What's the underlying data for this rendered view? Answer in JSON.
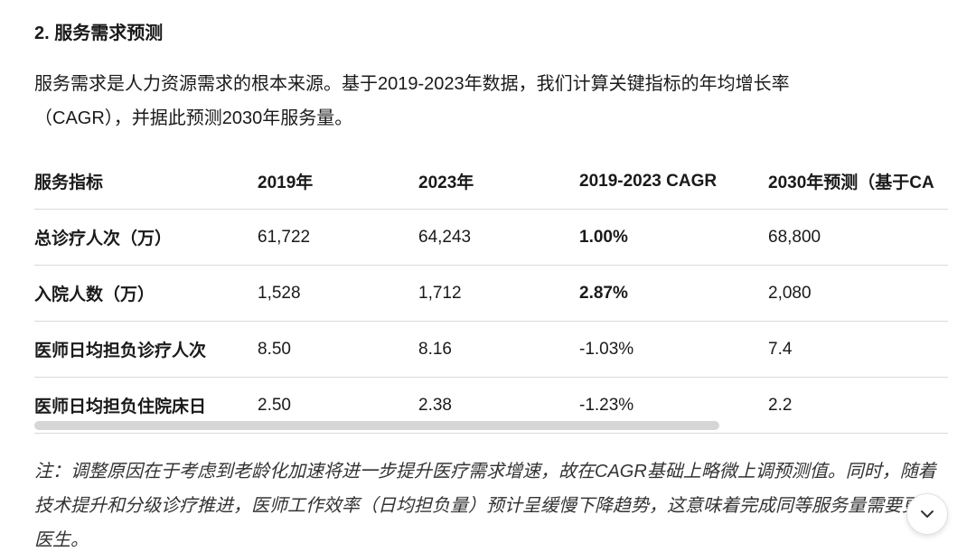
{
  "heading": "2. 服务需求预测",
  "paragraph": "服务需求是人力资源需求的根本来源。基于2019-2023年数据，我们计算关键指标的年均增长率（CAGR），并据此预测2030年服务量。",
  "table": {
    "headers": [
      "服务指标",
      "2019年",
      "2023年",
      "2019-2023 CAGR",
      "2030年预测（基于CA"
    ],
    "rows": [
      [
        "总诊疗人次（万）",
        "61,722",
        "64,243",
        "1.00%",
        "68,800"
      ],
      [
        "入院人数（万）",
        "1,528",
        "1,712",
        "2.87%",
        "2,080"
      ],
      [
        "医师日均担负诊疗人次",
        "8.50",
        "8.16",
        "-1.03%",
        "7.4"
      ],
      [
        "医师日均担负住院床日",
        "2.50",
        "2.38",
        "-1.23%",
        "2.2"
      ]
    ]
  },
  "note": "注：调整原因在于考虑到老龄化加速将进一步提升医疗需求增速，故在CAGR基础上略微上调预测值。同时，随着技术提升和分级诊疗推进，医师工作效率（日均担负量）预计呈缓慢下降趋势，这意味着完成同等服务量需要更多医生。"
}
